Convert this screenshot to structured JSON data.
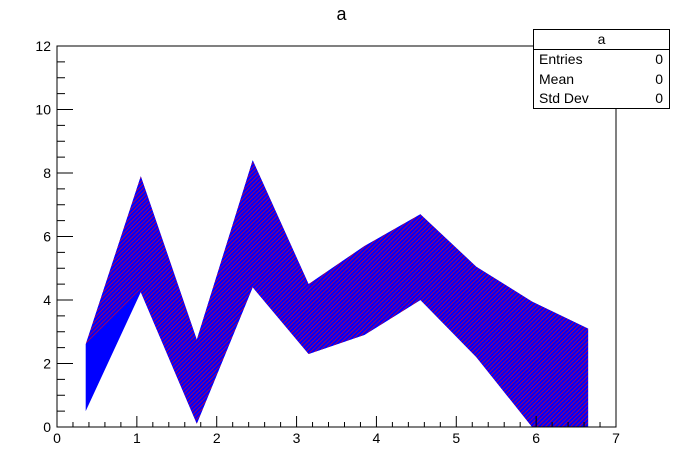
{
  "chart_data": {
    "type": "area",
    "title": "a",
    "xlabel": "",
    "ylabel": "",
    "xlim": [
      0,
      7
    ],
    "ylim": [
      0,
      12
    ],
    "x_ticks": [
      "0",
      "1",
      "2",
      "3",
      "4",
      "5",
      "6",
      "7"
    ],
    "y_ticks": [
      "0",
      "2",
      "4",
      "6",
      "8",
      "10",
      "12"
    ],
    "grid": false,
    "legend": "none",
    "series": [
      {
        "values": [
          {
            "x": 0.36,
            "low": 0.5,
            "high": 2.6
          },
          {
            "x": 1.05,
            "low": 4.25,
            "high": 7.9
          },
          {
            "x": 1.75,
            "low": 0.1,
            "high": 2.75
          },
          {
            "x": 2.45,
            "low": 4.4,
            "high": 8.4
          },
          {
            "x": 3.15,
            "low": 2.3,
            "high": 4.5
          },
          {
            "x": 3.85,
            "low": 2.9,
            "high": 5.7
          },
          {
            "x": 4.55,
            "low": 4.0,
            "high": 6.7
          },
          {
            "x": 5.25,
            "low": 2.2,
            "high": 5.05
          },
          {
            "x": 5.95,
            "low": 0.0,
            "high": 3.95
          },
          {
            "x": 6.65,
            "low": 0.0,
            "high": 3.1
          }
        ]
      }
    ],
    "fill_color": "#0000ff",
    "hatch_color": "#ff0000"
  },
  "stats": {
    "title": "a",
    "rows": [
      {
        "label": "Entries",
        "value": "0"
      },
      {
        "label": "Mean",
        "value": "0"
      },
      {
        "label": "Std Dev",
        "value": "0"
      }
    ]
  }
}
